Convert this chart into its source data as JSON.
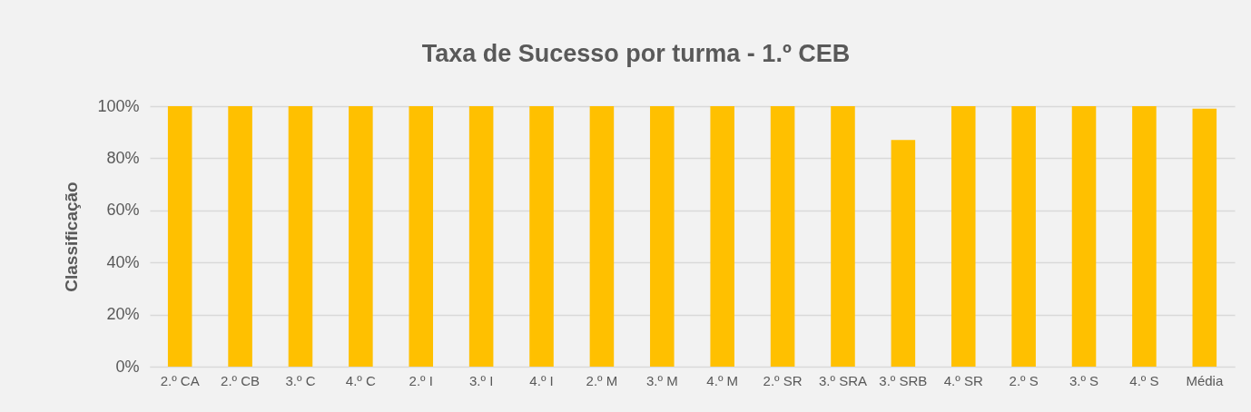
{
  "chart_data": {
    "type": "bar",
    "title": "Taxa de Sucesso por turma - 1.º CEB",
    "ylabel": "Classificação",
    "categories": [
      "2.º CA",
      "2.º CB",
      "3.º C",
      "4.º C",
      "2.º I",
      "3.º I",
      "4.º I",
      "2.º M",
      "3.º M",
      "4.º M",
      "2.º SR",
      "3.º SRA",
      "3.º SRB",
      "4.º SR",
      "2.º S",
      "3.º S",
      "4.º S",
      "Média"
    ],
    "values": [
      100,
      100,
      100,
      100,
      100,
      100,
      100,
      100,
      100,
      100,
      100,
      100,
      87,
      100,
      100,
      100,
      100,
      99
    ],
    "color": "#ffc000",
    "ylim": [
      0,
      100
    ],
    "yticks": [
      {
        "value": 0,
        "label": "0%"
      },
      {
        "value": 20,
        "label": "20%"
      },
      {
        "value": 40,
        "label": "40%"
      },
      {
        "value": 60,
        "label": "60%"
      },
      {
        "value": 80,
        "label": "80%"
      },
      {
        "value": 100,
        "label": "100%"
      }
    ],
    "grid": "y"
  }
}
